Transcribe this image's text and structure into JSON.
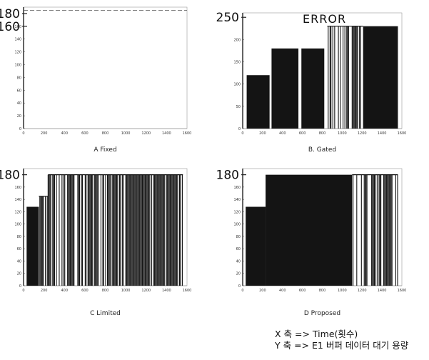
{
  "chart_data": [
    {
      "id": "A",
      "type": "bar",
      "caption": "A  Fixed",
      "xlim": [
        0,
        1600
      ],
      "ylim": [
        0,
        190
      ],
      "xticks": [
        "0",
        "200",
        "400",
        "600",
        "800",
        "1000",
        "1200",
        "1400",
        "1600"
      ],
      "yticks": [
        "0",
        "20",
        "40",
        "60",
        "80",
        "100",
        "120",
        "140",
        "160"
      ],
      "big_labels": [
        {
          "text": "180",
          "y": 180
        },
        {
          "text": "160",
          "y": 160
        }
      ],
      "annotation": "",
      "segments": [
        {
          "x0": 0,
          "x1": 1600,
          "y": 185,
          "density": 0.05
        }
      ]
    },
    {
      "id": "B",
      "type": "bar",
      "caption": "B. Gated",
      "xlim": [
        0,
        1600
      ],
      "ylim": [
        0,
        260
      ],
      "xticks": [
        "0",
        "200",
        "400",
        "600",
        "800",
        "1000",
        "1200",
        "1400",
        "1600"
      ],
      "yticks": [
        "0",
        "50",
        "100",
        "150",
        "200"
      ],
      "big_labels": [
        {
          "text": "250",
          "y": 250
        }
      ],
      "annotation": "ERROR",
      "segments": [
        {
          "x0": 40,
          "x1": 270,
          "y": 120,
          "density": 0.97
        },
        {
          "x0": 290,
          "x1": 560,
          "y": 180,
          "density": 0.95
        },
        {
          "x0": 590,
          "x1": 820,
          "y": 180,
          "density": 0.93
        },
        {
          "x0": 850,
          "x1": 1100,
          "y": 230,
          "density": 0.45
        },
        {
          "x0": 1100,
          "x1": 1210,
          "y": 230,
          "density": 0.7
        },
        {
          "x0": 1210,
          "x1": 1560,
          "y": 230,
          "density": 0.98
        }
      ]
    },
    {
      "id": "C",
      "type": "bar",
      "caption": "C  Limited",
      "xlim": [
        0,
        1600
      ],
      "ylim": [
        0,
        190
      ],
      "xticks": [
        "0",
        "200",
        "400",
        "600",
        "800",
        "1000",
        "1200",
        "1400",
        "1600"
      ],
      "yticks": [
        "0",
        "20",
        "40",
        "60",
        "80",
        "100",
        "120",
        "140",
        "160"
      ],
      "big_labels": [
        {
          "text": "180",
          "y": 180
        }
      ],
      "annotation": "",
      "segments": [
        {
          "x0": 30,
          "x1": 150,
          "y": 128,
          "density": 0.97
        },
        {
          "x0": 150,
          "x1": 240,
          "y": 145,
          "density": 0.5
        },
        {
          "x0": 240,
          "x1": 1000,
          "y": 180,
          "density": 0.72
        },
        {
          "x0": 1000,
          "x1": 1560,
          "y": 180,
          "density": 0.88
        }
      ]
    },
    {
      "id": "D",
      "type": "bar",
      "caption": "D  Proposed",
      "xlim": [
        0,
        1600
      ],
      "ylim": [
        0,
        190
      ],
      "xticks": [
        "0",
        "200",
        "400",
        "600",
        "800",
        "1000",
        "1200",
        "1400",
        "1600"
      ],
      "yticks": [
        "0",
        "20",
        "40",
        "60",
        "80",
        "100",
        "120",
        "140",
        "160"
      ],
      "big_labels": [
        {
          "text": "180",
          "y": 180
        }
      ],
      "annotation": "",
      "segments": [
        {
          "x0": 30,
          "x1": 230,
          "y": 128,
          "density": 0.97
        },
        {
          "x0": 230,
          "x1": 1100,
          "y": 180,
          "density": 0.92
        },
        {
          "x0": 1100,
          "x1": 1560,
          "y": 180,
          "density": 0.55
        }
      ]
    }
  ],
  "notes": {
    "x_axis": "X 축 => Time(횟수)",
    "y_axis": "Y 축 => E1 버퍼 데이터 대기 용량"
  },
  "colors": {
    "bars": "#141414",
    "axis": "#222222"
  }
}
